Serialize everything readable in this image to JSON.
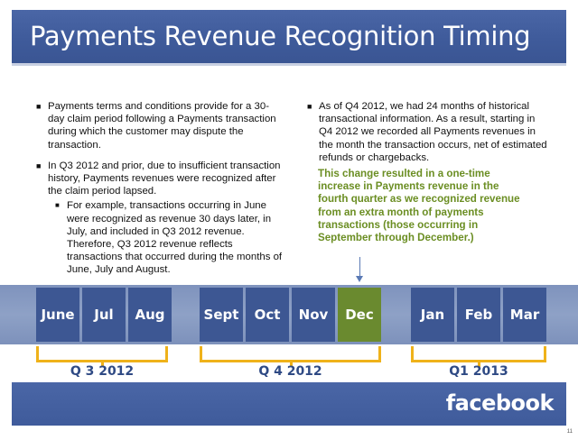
{
  "title": "Payments Revenue Recognition Timing",
  "left_column": {
    "bullets": [
      {
        "text": "Payments terms and conditions provide for a 30-day claim period following a Payments transaction during which the customer may dispute the transaction."
      },
      {
        "text": "In Q3 2012 and prior, due to insufficient transaction history, Payments revenues were recognized after the claim period lapsed."
      }
    ],
    "sub_bullet": "For example, transactions occurring in June were recognized as revenue 30 days later, in July, and included in Q3 2012 revenue. Therefore, Q3 2012 revenue reflects transactions that occurred during the months of June, July and August."
  },
  "right_column": {
    "bullet": "As of Q4 2012, we had 24 months of historical transactional information.  As a result, starting in Q4 2012 we recorded all Payments revenues in the month the transaction occurs, net of estimated refunds or chargebacks.",
    "callout": "This change resulted in a one-time increase in Payments revenue in the fourth quarter as we recognized revenue from an extra month of payments transactions (those occurring in September through December.)"
  },
  "timeline": {
    "months": [
      "June",
      "Jul",
      "Aug",
      "Sept",
      "Oct",
      "Nov",
      "Dec",
      "Jan",
      "Feb",
      "Mar"
    ],
    "highlighted_month": "Dec",
    "quarters": [
      "Q 3 2012",
      "Q 4 2012",
      "Q1 2013"
    ]
  },
  "colors": {
    "brand_blue": "#3f5b9b",
    "highlight_green": "#6a8a2f",
    "callout_green": "#6b8e23",
    "bracket_gold": "#efb21a"
  },
  "footer": {
    "logo_text": "facebook"
  },
  "page_number": "11"
}
